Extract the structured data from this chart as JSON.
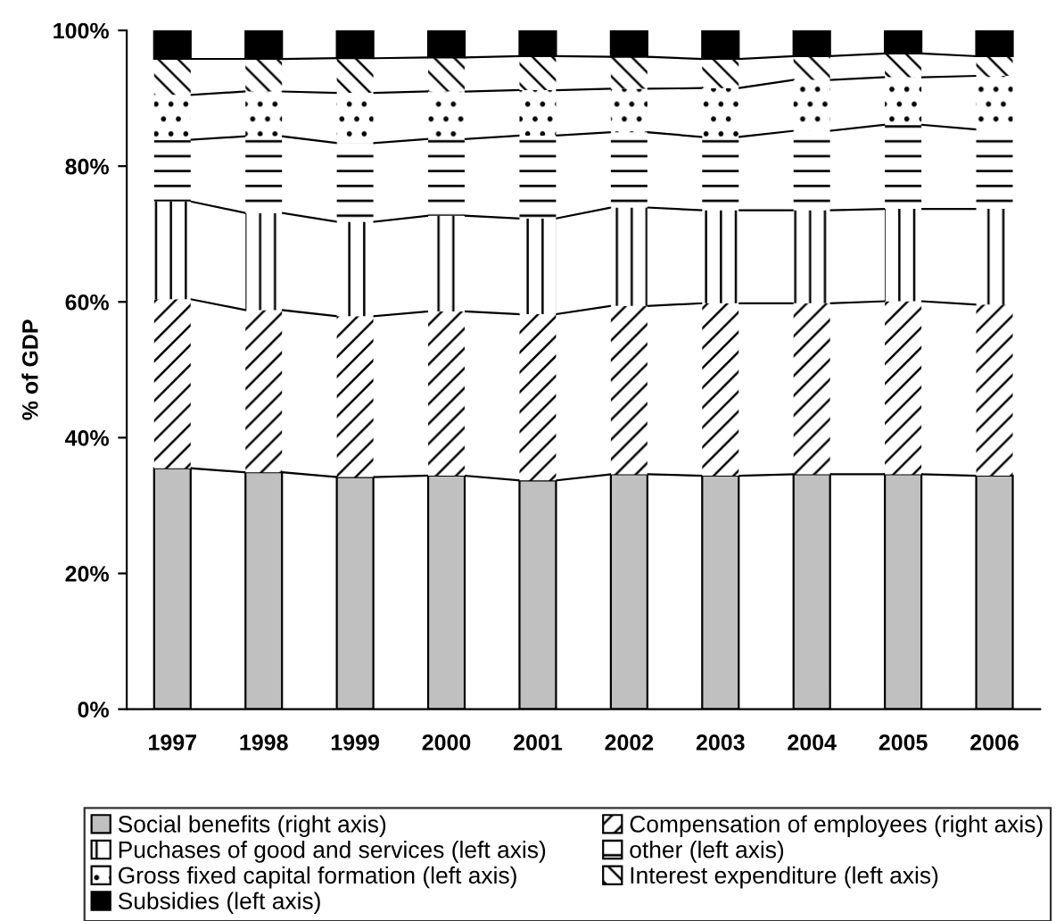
{
  "chart_data": {
    "type": "bar",
    "stacked": true,
    "ylabel": "% of GDP",
    "categories": [
      "1997",
      "1998",
      "1999",
      "2000",
      "2001",
      "2002",
      "2003",
      "2004",
      "2005",
      "2006"
    ],
    "series": [
      {
        "name": "Social benefits (right axis)",
        "color": "#c0c0c0",
        "values": [
          35.5,
          34.9,
          34.2,
          34.4,
          33.7,
          34.6,
          34.4,
          34.6,
          34.6,
          34.4
        ]
      },
      {
        "name": "Compensation of employees (right axis)",
        "color": "#ffffff",
        "values": [
          24.9,
          23.9,
          23.7,
          24.2,
          24.5,
          24.8,
          25.4,
          25.2,
          25.5,
          25.2
        ]
      },
      {
        "name": "Puchases of good and services (left axis)",
        "color": "#ffffff",
        "values": [
          14.4,
          14.3,
          13.9,
          14.1,
          14.1,
          14.5,
          13.7,
          13.7,
          13.6,
          14.1
        ]
      },
      {
        "name": "other (left axis)",
        "color": "#ffffff",
        "values": [
          9.1,
          11.3,
          11.6,
          11.3,
          12.2,
          11.1,
          10.8,
          11.7,
          12.4,
          11.7
        ]
      },
      {
        "name": "Gross fixed capital formation (left axis)",
        "color": "#ffffff",
        "values": [
          6.6,
          6.6,
          7.4,
          7.0,
          6.7,
          6.4,
          7.2,
          7.5,
          7.0,
          7.9
        ]
      },
      {
        "name": "Interest expenditure (left axis)",
        "color": "#ffffff",
        "values": [
          5.3,
          4.8,
          5.1,
          5.0,
          5.0,
          4.7,
          4.3,
          3.5,
          3.5,
          2.9
        ]
      },
      {
        "name": "Subsidies (left axis)",
        "color": "#000000",
        "values": [
          4.2,
          4.2,
          4.1,
          4.0,
          3.8,
          3.9,
          4.2,
          3.8,
          3.4,
          3.8
        ]
      }
    ],
    "ylim": [
      0,
      100
    ],
    "yticks": [
      {
        "value": 0,
        "label": "0%"
      },
      {
        "value": 20,
        "label": "20%"
      },
      {
        "value": 40,
        "label": "40%"
      },
      {
        "value": 60,
        "label": "60%"
      },
      {
        "value": 80,
        "label": "80%"
      },
      {
        "value": 100,
        "label": "100%"
      }
    ],
    "grid": false,
    "legend": "bottom"
  }
}
